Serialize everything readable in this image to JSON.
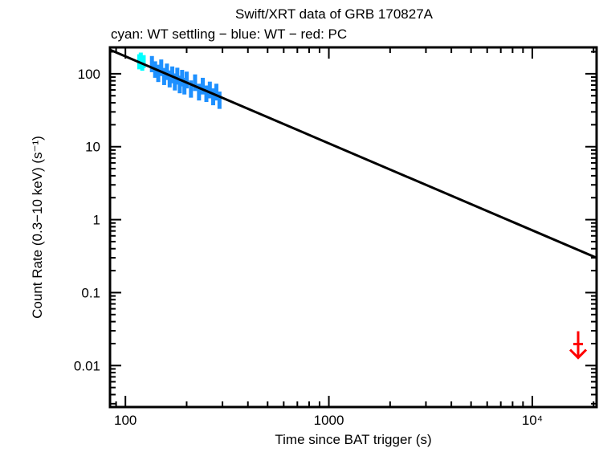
{
  "chart_data": {
    "type": "scatter",
    "title": "Swift/XRT data of GRB 170827A",
    "subtitle": "cyan: WT settling − blue: WT − red: PC",
    "xlabel": "Time since BAT trigger (s)",
    "ylabel": "Count Rate (0.3−10 keV) (s⁻¹)",
    "xscale": "log",
    "yscale": "log",
    "xlim": [
      84,
      20700
    ],
    "ylim": [
      0.0027,
      230
    ],
    "x_ticks": [
      {
        "value": 100,
        "label": "100"
      },
      {
        "value": 1000,
        "label": "1000"
      },
      {
        "value": 10000,
        "label": "10⁴"
      }
    ],
    "y_ticks": [
      {
        "value": 100,
        "label": "100"
      },
      {
        "value": 10,
        "label": "10"
      },
      {
        "value": 1,
        "label": "1"
      },
      {
        "value": 0.1,
        "label": "0.1"
      },
      {
        "value": 0.01,
        "label": "0.01"
      }
    ],
    "colors": {
      "wt_settling": "#00ffff",
      "wt": "#1e90ff",
      "pc": "#ff0000",
      "model": "#000000"
    },
    "series": [
      {
        "name": "WT settling",
        "color_key": "wt_settling",
        "points": [
          [
            117,
            150,
            35
          ],
          [
            119,
            160,
            35
          ],
          [
            121,
            140,
            30
          ],
          [
            123,
            150,
            30
          ]
        ]
      },
      {
        "name": "WT",
        "color_key": "wt",
        "points": [
          [
            135,
            140,
            35
          ],
          [
            140,
            118,
            30
          ],
          [
            145,
            105,
            28
          ],
          [
            150,
            125,
            32
          ],
          [
            155,
            95,
            25
          ],
          [
            160,
            110,
            28
          ],
          [
            165,
            88,
            23
          ],
          [
            170,
            100,
            26
          ],
          [
            175,
            80,
            21
          ],
          [
            180,
            96,
            25
          ],
          [
            185,
            74,
            20
          ],
          [
            190,
            90,
            23
          ],
          [
            195,
            70,
            18
          ],
          [
            200,
            85,
            22
          ],
          [
            210,
            64,
            17
          ],
          [
            220,
            78,
            20
          ],
          [
            230,
            58,
            15
          ],
          [
            240,
            70,
            18
          ],
          [
            250,
            55,
            14
          ],
          [
            260,
            62,
            16
          ],
          [
            270,
            50,
            13
          ],
          [
            280,
            58,
            15
          ],
          [
            290,
            45,
            12
          ]
        ]
      },
      {
        "name": "PC",
        "color_key": "pc",
        "upper_limits": [
          [
            16800,
            0.0197
          ]
        ]
      }
    ],
    "model": {
      "name": "power-law fit",
      "points": [
        [
          84,
          213
        ],
        [
          20700,
          0.3
        ]
      ]
    }
  }
}
